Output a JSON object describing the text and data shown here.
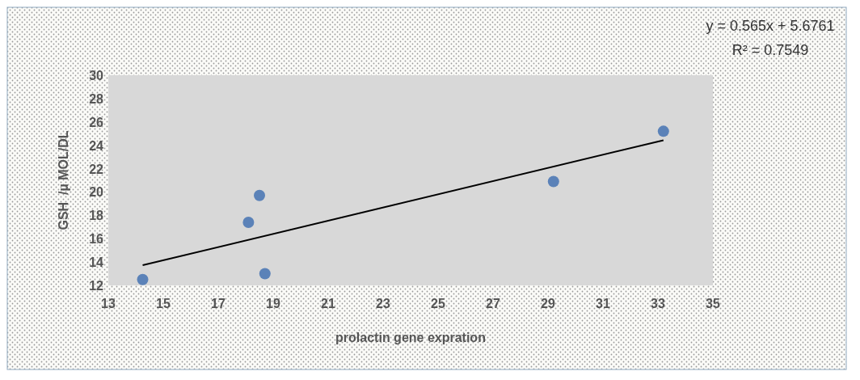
{
  "chart_data": {
    "type": "scatter",
    "xlabel": "prolactin gene expration",
    "ylabel": "GSH  /µ MOL/DL",
    "annotations": [
      "y = 0.565x + 5.6761",
      "R² = 0.7549"
    ],
    "series": [
      {
        "color": "#5b82b8",
        "x": [
          14.25,
          18.1,
          18.5,
          18.7,
          29.2,
          33.2
        ],
        "values": [
          12.5,
          17.4,
          19.7,
          13.0,
          20.9,
          25.2
        ]
      },
      {
        "type": "line",
        "marker": "none",
        "color": "#000000",
        "x": [
          14.25,
          33.2
        ],
        "values": [
          13.73,
          24.43
        ]
      }
    ],
    "xlim": [
      13,
      35
    ],
    "xticks": [
      13,
      15,
      17,
      19,
      21,
      23,
      25,
      27,
      29,
      31,
      33,
      35
    ],
    "ylim": [
      12,
      30
    ],
    "yticks": [
      12,
      14,
      16,
      18,
      20,
      22,
      24,
      26,
      28,
      30
    ],
    "marker": "circle"
  }
}
